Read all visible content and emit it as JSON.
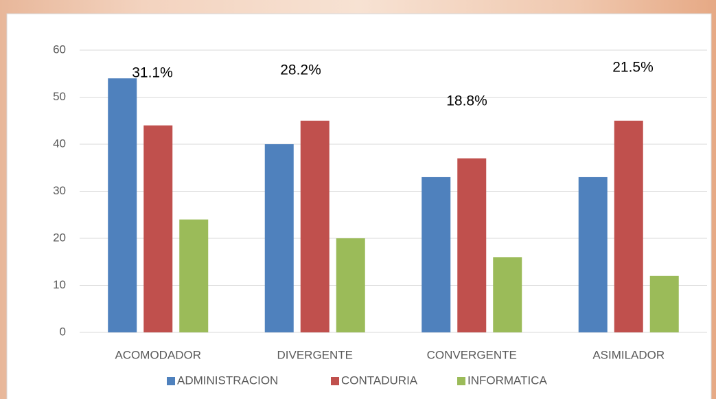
{
  "chart_data": {
    "type": "bar",
    "categories": [
      "ACOMODADOR",
      "DIVERGENTE",
      "CONVERGENTE",
      "ASIMILADOR"
    ],
    "series": [
      {
        "name": "ADMINISTRACION",
        "color": "#4f81bd",
        "values": [
          54,
          40,
          33,
          33
        ]
      },
      {
        "name": "CONTADURIA",
        "color": "#c0504d",
        "values": [
          44,
          45,
          37,
          45
        ]
      },
      {
        "name": "INFORMATICA",
        "color": "#9bbb59",
        "values": [
          24,
          20,
          16,
          12
        ]
      }
    ],
    "annotations": [
      "31.1%",
      "28.2%",
      "18.8%",
      "21.5%"
    ],
    "ylim": [
      0,
      60
    ],
    "yticks": [
      0,
      10,
      20,
      30,
      40,
      50,
      60
    ],
    "grid": true,
    "legend": "bottom"
  }
}
